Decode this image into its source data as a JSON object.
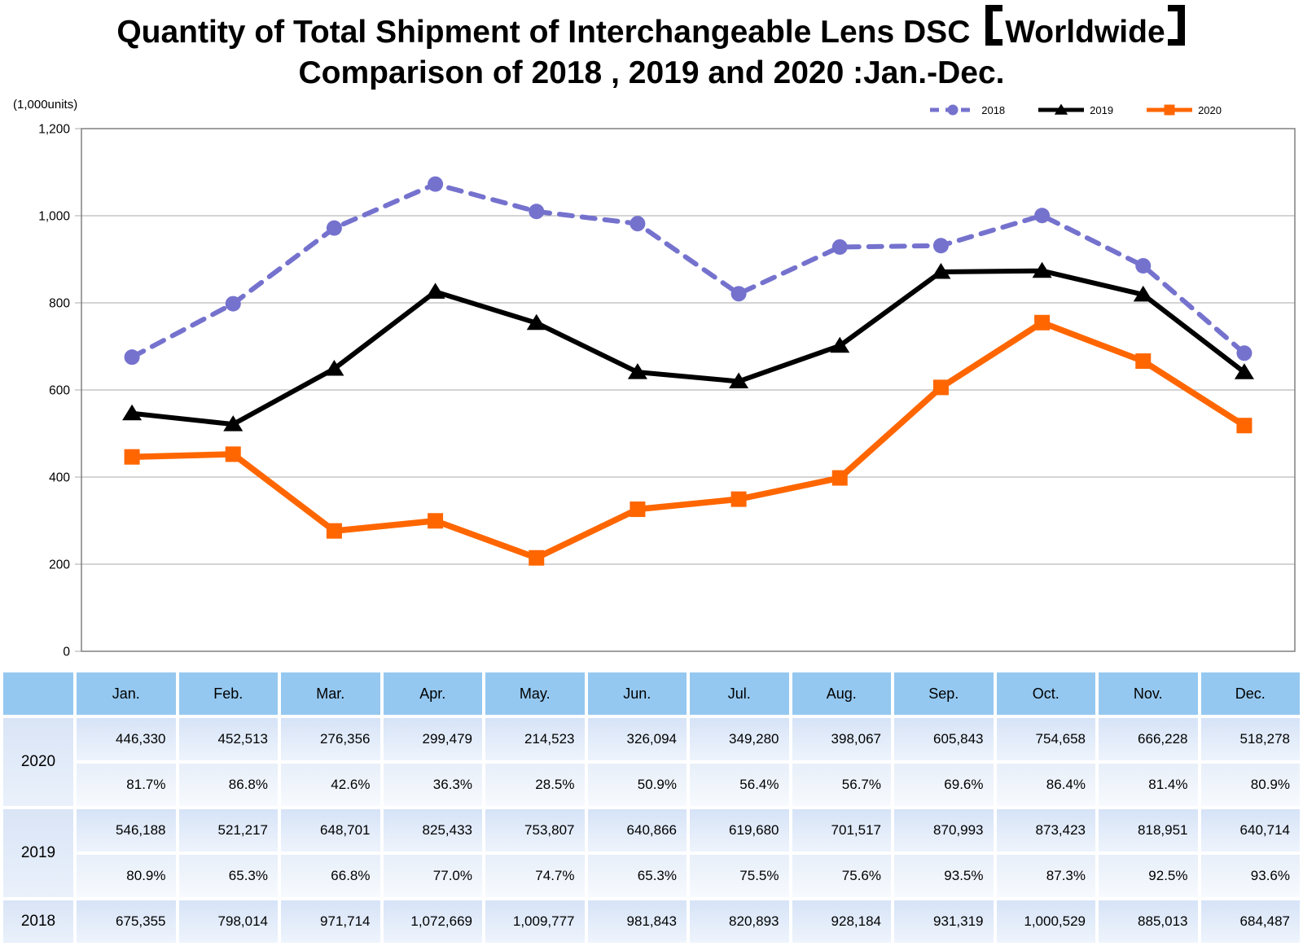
{
  "title": {
    "full": "Quantity of Total Shipment of Interchangeable Lens DSC 【Worldwide】 Comparison of 2018 , 2019 and 2020 :Jan.-Dec.",
    "line1_prefix": "Quantity of Total Shipment of Interchangeable Lens DSC ",
    "line1_bracket_text": "Worldwide",
    "line2": "Comparison of 2018 , 2019 and 2020 :Jan.-Dec."
  },
  "chart_data": {
    "type": "line",
    "title": "Quantity of Total Shipment of Interchangeable Lens DSC 【Worldwide】 Comparison of 2018 , 2019 and 2020 :Jan.-Dec.",
    "unit_label": "(1,000units)",
    "categories": [
      "Jan.",
      "Feb.",
      "Mar.",
      "Apr.",
      "May.",
      "Jun.",
      "Jul.",
      "Aug.",
      "Sep.",
      "Oct.",
      "Nov.",
      "Dec."
    ],
    "ylim": [
      0,
      1200
    ],
    "ytick_interval": 200,
    "ytick_labels": [
      "0",
      "200",
      "400",
      "600",
      "800",
      "1,000",
      "1,200"
    ],
    "grid": true,
    "legend_position": "top-right",
    "frame_color": "#808080",
    "grid_color": "#a8a8a8",
    "series": [
      {
        "name": "2018",
        "color": "#7572CE",
        "line_style": "dashed",
        "marker": "circle",
        "values": [
          675.355,
          798.014,
          971.714,
          1072.669,
          1009.777,
          981.843,
          820.893,
          928.184,
          931.319,
          1000.529,
          885.013,
          684.487
        ]
      },
      {
        "name": "2019",
        "color": "#000000",
        "line_style": "solid",
        "marker": "triangle",
        "values": [
          546.188,
          521.217,
          648.701,
          825.433,
          753.807,
          640.866,
          619.68,
          701.517,
          870.993,
          873.423,
          818.951,
          640.714
        ]
      },
      {
        "name": "2020",
        "color": "#FF6600",
        "line_style": "solid",
        "marker": "square",
        "values": [
          446.33,
          452.513,
          276.356,
          299.479,
          214.523,
          326.094,
          349.28,
          398.067,
          605.843,
          754.658,
          666.228,
          518.278
        ]
      }
    ]
  },
  "table": {
    "corner_label": "",
    "months": [
      "Jan.",
      "Feb.",
      "Mar.",
      "Apr.",
      "May.",
      "Jun.",
      "Jul.",
      "Aug.",
      "Sep.",
      "Oct.",
      "Nov.",
      "Dec."
    ],
    "groups": [
      {
        "year": "2020",
        "rows": [
          {
            "kind": "units",
            "cells": [
              "446,330",
              "452,513",
              "276,356",
              "299,479",
              "214,523",
              "326,094",
              "349,280",
              "398,067",
              "605,843",
              "754,658",
              "666,228",
              "518,278"
            ]
          },
          {
            "kind": "yoy_percent",
            "cells": [
              "81.7%",
              "86.8%",
              "42.6%",
              "36.3%",
              "28.5%",
              "50.9%",
              "56.4%",
              "56.7%",
              "69.6%",
              "86.4%",
              "81.4%",
              "80.9%"
            ]
          }
        ]
      },
      {
        "year": "2019",
        "rows": [
          {
            "kind": "units",
            "cells": [
              "546,188",
              "521,217",
              "648,701",
              "825,433",
              "753,807",
              "640,866",
              "619,680",
              "701,517",
              "870,993",
              "873,423",
              "818,951",
              "640,714"
            ]
          },
          {
            "kind": "yoy_percent",
            "cells": [
              "80.9%",
              "65.3%",
              "66.8%",
              "77.0%",
              "74.7%",
              "65.3%",
              "75.5%",
              "75.6%",
              "93.5%",
              "87.3%",
              "92.5%",
              "93.6%"
            ]
          }
        ]
      },
      {
        "year": "2018",
        "rows": [
          {
            "kind": "units",
            "cells": [
              "675,355",
              "798,014",
              "971,714",
              "1,072,669",
              "1,009,777",
              "981,843",
              "820,893",
              "928,184",
              "931,319",
              "1,000,529",
              "885,013",
              "684,487"
            ]
          }
        ]
      }
    ]
  },
  "colors": {
    "series_2018": "#7572CE",
    "series_2019": "#000000",
    "series_2020": "#FF6600",
    "table_header_blue": "#95C8F0",
    "grid": "#A8A8A8",
    "frame": "#808080"
  }
}
